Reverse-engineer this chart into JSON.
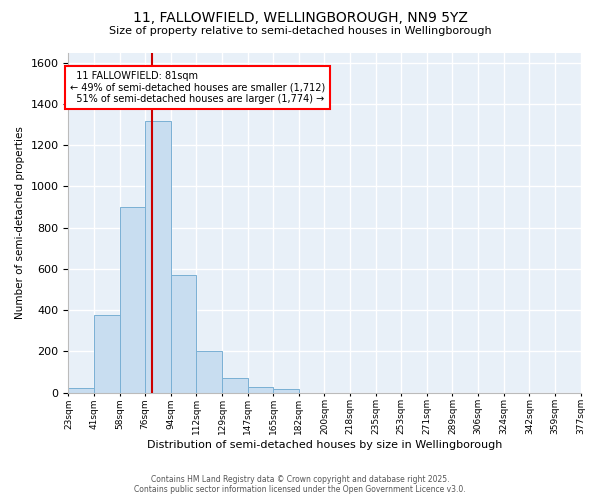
{
  "title": "11, FALLOWFIELD, WELLINGBOROUGH, NN9 5YZ",
  "subtitle": "Size of property relative to semi-detached houses in Wellingborough",
  "xlabel": "Distribution of semi-detached houses by size in Wellingborough",
  "ylabel": "Number of semi-detached properties",
  "bin_labels": [
    "23sqm",
    "41sqm",
    "58sqm",
    "76sqm",
    "94sqm",
    "112sqm",
    "129sqm",
    "147sqm",
    "165sqm",
    "182sqm",
    "200sqm",
    "218sqm",
    "235sqm",
    "253sqm",
    "271sqm",
    "289sqm",
    "306sqm",
    "324sqm",
    "342sqm",
    "359sqm",
    "377sqm"
  ],
  "bar_values": [
    20,
    375,
    900,
    1320,
    570,
    200,
    70,
    25,
    15,
    0,
    0,
    0,
    0,
    0,
    0,
    0,
    0,
    0,
    0,
    0
  ],
  "bar_color": "#c8ddf0",
  "bar_edge_color": "#7ab0d4",
  "property_sqm": 81,
  "bin_starts": [
    23,
    41,
    58,
    76,
    94,
    112,
    129,
    147,
    165,
    182,
    200,
    218,
    235,
    253,
    271,
    289,
    306,
    324,
    342,
    359
  ],
  "bin_ends": [
    41,
    58,
    76,
    94,
    112,
    129,
    147,
    165,
    182,
    200,
    218,
    235,
    253,
    271,
    289,
    306,
    324,
    342,
    359,
    377
  ],
  "pct_smaller": 49,
  "count_smaller": 1712,
  "pct_larger": 51,
  "count_larger": 1774,
  "annotation_label": "11 FALLOWFIELD: 81sqm",
  "ylim_max": 1650,
  "yticks": [
    0,
    200,
    400,
    600,
    800,
    1000,
    1200,
    1400,
    1600
  ],
  "fig_bg_color": "#ffffff",
  "plot_bg_color": "#e8f0f8",
  "grid_color": "#ffffff",
  "red_line_color": "#cc0000",
  "footer1": "Contains HM Land Registry data © Crown copyright and database right 2025.",
  "footer2": "Contains public sector information licensed under the Open Government Licence v3.0.",
  "title_fontsize": 10,
  "subtitle_fontsize": 8,
  "ylabel_fontsize": 7.5,
  "xlabel_fontsize": 8,
  "ytick_fontsize": 8,
  "xtick_fontsize": 6.5,
  "footer_fontsize": 5.5,
  "annot_fontsize": 7
}
